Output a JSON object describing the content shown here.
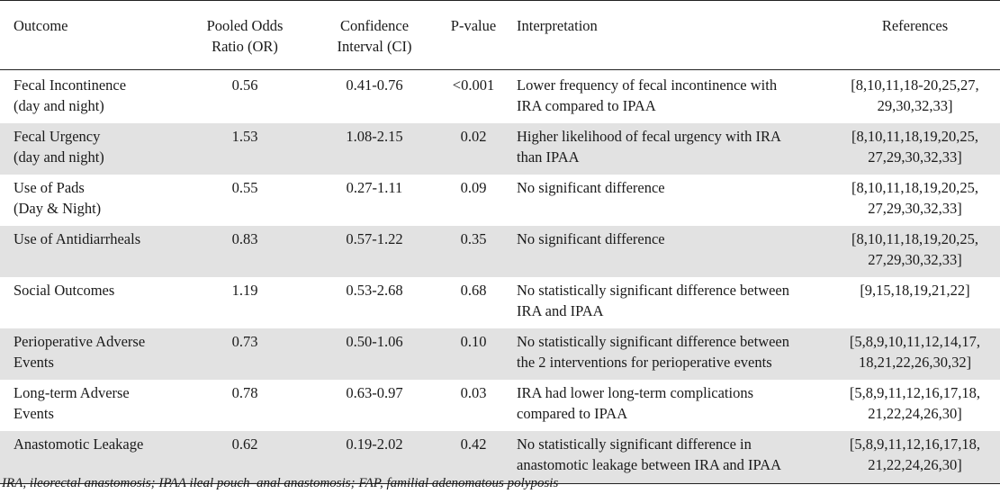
{
  "table": {
    "headers": {
      "outcome": "Outcome",
      "or": "Pooled Odds\nRatio (OR)",
      "ci": "Confidence\nInterval (CI)",
      "p": "P-value",
      "interpretation": "Interpretation",
      "references": "References"
    },
    "rows": [
      {
        "outcome": "Fecal Incontinence\n(day and night)",
        "or": "0.56",
        "ci": "0.41-0.76",
        "p": "<0.001",
        "interpretation": "Lower frequency of fecal incontinence with\nIRA compared to IPAA",
        "references": "[8,10,11,18-20,25,27,\n29,30,32,33]"
      },
      {
        "outcome": "Fecal Urgency\n(day and night)",
        "or": "1.53",
        "ci": "1.08-2.15",
        "p": "0.02",
        "interpretation": "Higher likelihood of fecal urgency with IRA\nthan IPAA",
        "references": "[8,10,11,18,19,20,25,\n27,29,30,32,33]"
      },
      {
        "outcome": "Use of Pads\n(Day & Night)",
        "or": "0.55",
        "ci": "0.27-1.11",
        "p": "0.09",
        "interpretation": "No significant difference",
        "references": "[8,10,11,18,19,20,25,\n27,29,30,32,33]"
      },
      {
        "outcome": "Use of Antidiarrheals",
        "or": "0.83",
        "ci": "0.57-1.22",
        "p": "0.35",
        "interpretation": "No significant difference",
        "references": "[8,10,11,18,19,20,25,\n27,29,30,32,33]"
      },
      {
        "outcome": "Social Outcomes",
        "or": "1.19",
        "ci": "0.53-2.68",
        "p": "0.68",
        "interpretation": "No statistically significant difference between\nIRA and IPAA",
        "references": "[9,15,18,19,21,22]"
      },
      {
        "outcome": "Perioperative Adverse\nEvents",
        "or": "0.73",
        "ci": "0.50-1.06",
        "p": "0.10",
        "interpretation": "No statistically significant difference between\nthe 2 interventions for perioperative events",
        "references": "[5,8,9,10,11,12,14,17,\n18,21,22,26,30,32]"
      },
      {
        "outcome": "Long-term Adverse\nEvents",
        "or": "0.78",
        "ci": "0.63-0.97",
        "p": "0.03",
        "interpretation": "IRA had lower long-term complications\ncompared to IPAA",
        "references": "[5,8,9,11,12,16,17,18,\n21,22,24,26,30]"
      },
      {
        "outcome": "Anastomotic Leakage",
        "or": "0.62",
        "ci": "0.19-2.02",
        "p": "0.42",
        "interpretation": "No statistically significant difference in\nanastomotic leakage between IRA and IPAA",
        "references": "[5,8,9,11,12,16,17,18,\n21,22,24,26,30]"
      }
    ],
    "footnote": "IRA, ileorectal anastomosis; IPAA ileal pouch–anal anastomosis; FAP, familial adenomatous polyposis"
  }
}
